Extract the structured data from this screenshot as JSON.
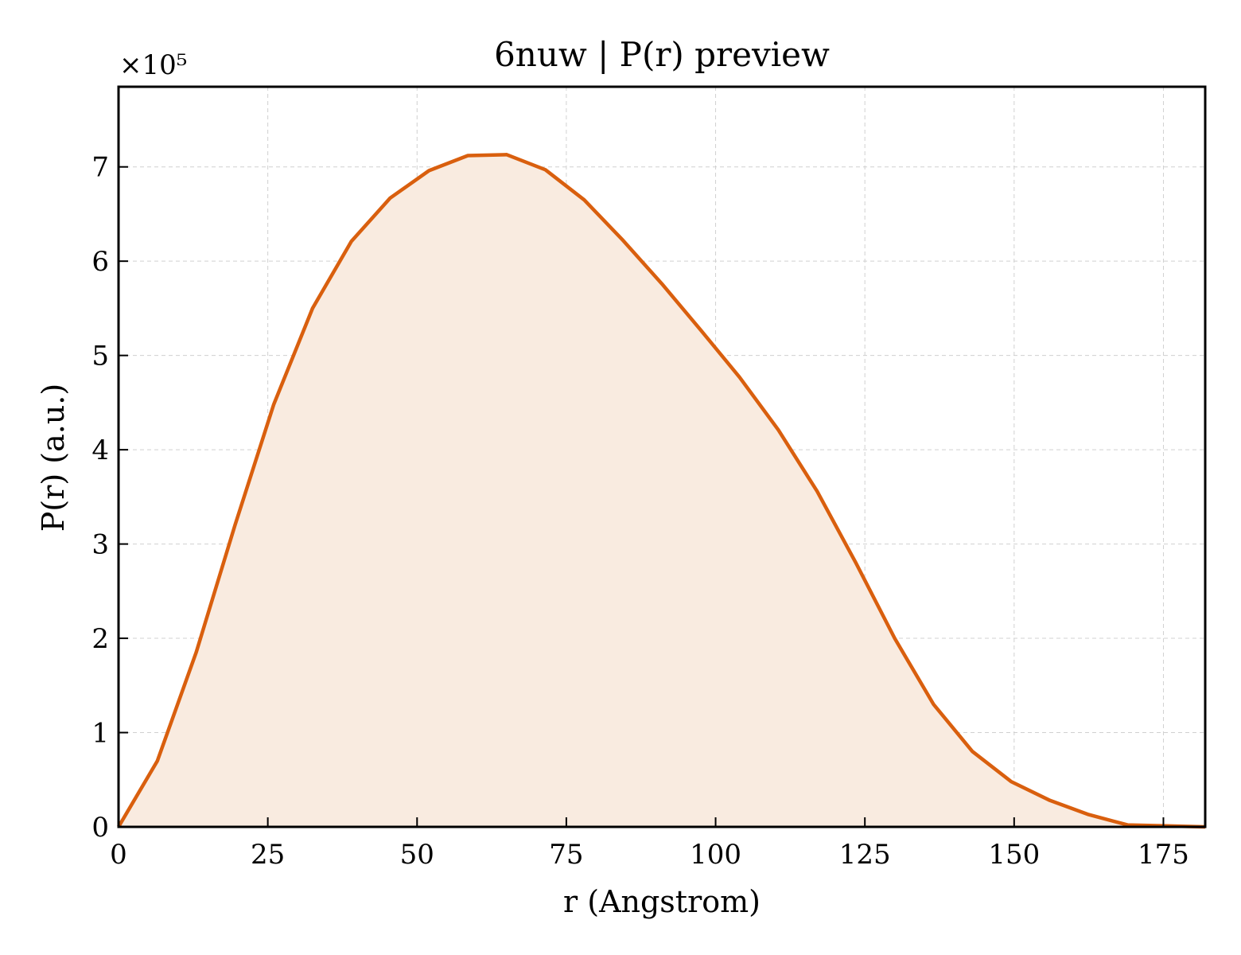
{
  "chart_data": {
    "type": "area",
    "title": "6nuw | P(r) preview",
    "xlabel": "r (Angstrom)",
    "ylabel": "P(r) (a.u.)",
    "y_multiplier_label": "×10⁵",
    "xlim": [
      0,
      182
    ],
    "ylim": [
      0,
      7.85
    ],
    "y_scale_factor": 100000,
    "grid": true,
    "xticks": [
      0,
      25,
      50,
      75,
      100,
      125,
      150,
      175
    ],
    "xtick_labels": [
      "0",
      "25",
      "50",
      "75",
      "100",
      "125",
      "150",
      "175"
    ],
    "yticks": [
      0,
      1,
      2,
      3,
      4,
      5,
      6,
      7
    ],
    "ytick_labels": [
      "0",
      "1",
      "2",
      "3",
      "4",
      "5",
      "6",
      "7"
    ],
    "line_color": "#d95f0e",
    "fill_color": "#f9ebe0",
    "series": [
      {
        "x": [
          0,
          6.5,
          13,
          19.5,
          26,
          32.5,
          39,
          45.5,
          52,
          58.5,
          65,
          71.5,
          78,
          84.5,
          91,
          97.5,
          104,
          110.5,
          117,
          123.5,
          130,
          136.5,
          143,
          149.5,
          156,
          162.5,
          169,
          175.5,
          182
        ],
        "y": [
          0,
          0.7,
          1.85,
          3.2,
          4.48,
          5.5,
          6.21,
          6.67,
          6.96,
          7.12,
          7.13,
          6.97,
          6.65,
          6.22,
          5.76,
          5.27,
          4.77,
          4.21,
          3.56,
          2.8,
          2.0,
          1.3,
          0.8,
          0.48,
          0.28,
          0.13,
          0.02,
          0.01,
          0.0
        ]
      }
    ]
  }
}
